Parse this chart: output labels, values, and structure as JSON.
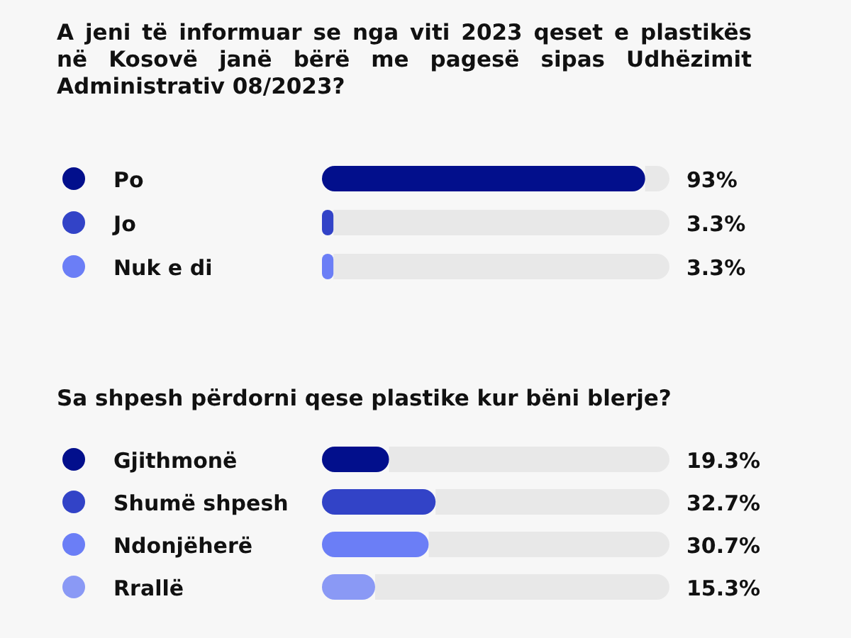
{
  "chart_data": [
    {
      "type": "bar",
      "orientation": "horizontal",
      "title": "A jeni të informuar se nga viti 2023 qeset e plastikës në Kosovë janë bërë me pagesë sipas Udhëzimit Administrativ 08/2023?",
      "categories": [
        "Po",
        "Jo",
        "Nuk e di"
      ],
      "values": [
        93,
        3.3,
        3.3
      ],
      "value_labels": [
        "93%",
        "3.3%",
        "3.3%"
      ],
      "colors": [
        "#020f8c",
        "#3243c7",
        "#6b7ef6"
      ],
      "xlim": [
        0,
        100
      ],
      "tick_labels": false
    },
    {
      "type": "bar",
      "orientation": "horizontal",
      "title": "Sa shpesh përdorni qese plastike kur bëni blerje?",
      "categories": [
        "Gjithmonë",
        "Shumë shpesh",
        "Ndonjëherë",
        "Rrallë"
      ],
      "values": [
        19.3,
        32.7,
        30.7,
        15.3
      ],
      "value_labels": [
        "19.3%",
        "32.7%",
        "30.7%",
        "15.3%"
      ],
      "colors": [
        "#020f8c",
        "#3243c7",
        "#6b7ef6",
        "#8a99f5"
      ],
      "xlim": [
        0,
        100
      ],
      "tick_labels": false
    }
  ]
}
